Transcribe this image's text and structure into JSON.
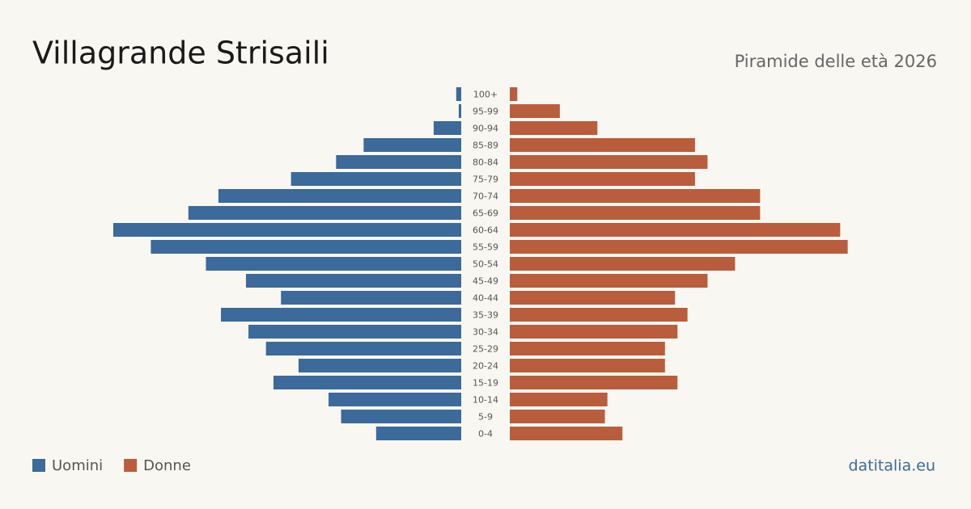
{
  "chart_data": {
    "type": "pyramid",
    "title": "Villagrande Strisaili",
    "subtitle": "Piramide delle età 2026",
    "source": "datitalia.eu",
    "categories": [
      "100+",
      "95-99",
      "90-94",
      "85-89",
      "80-84",
      "75-79",
      "70-74",
      "65-69",
      "60-64",
      "55-59",
      "50-54",
      "45-49",
      "40-44",
      "35-39",
      "30-34",
      "25-29",
      "20-24",
      "15-19",
      "10-14",
      "5-9",
      "0-4"
    ],
    "series": [
      {
        "name": "Uomini",
        "color": "#3b6a9b",
        "values": [
          2,
          1,
          11,
          39,
          50,
          68,
          97,
          109,
          139,
          124,
          102,
          86,
          72,
          96,
          85,
          78,
          65,
          75,
          53,
          48,
          34
        ]
      },
      {
        "name": "Donne",
        "color": "#b95d3c",
        "values": [
          3,
          20,
          35,
          74,
          79,
          74,
          100,
          100,
          132,
          135,
          90,
          79,
          66,
          71,
          67,
          62,
          62,
          67,
          39,
          38,
          45
        ]
      }
    ]
  }
}
